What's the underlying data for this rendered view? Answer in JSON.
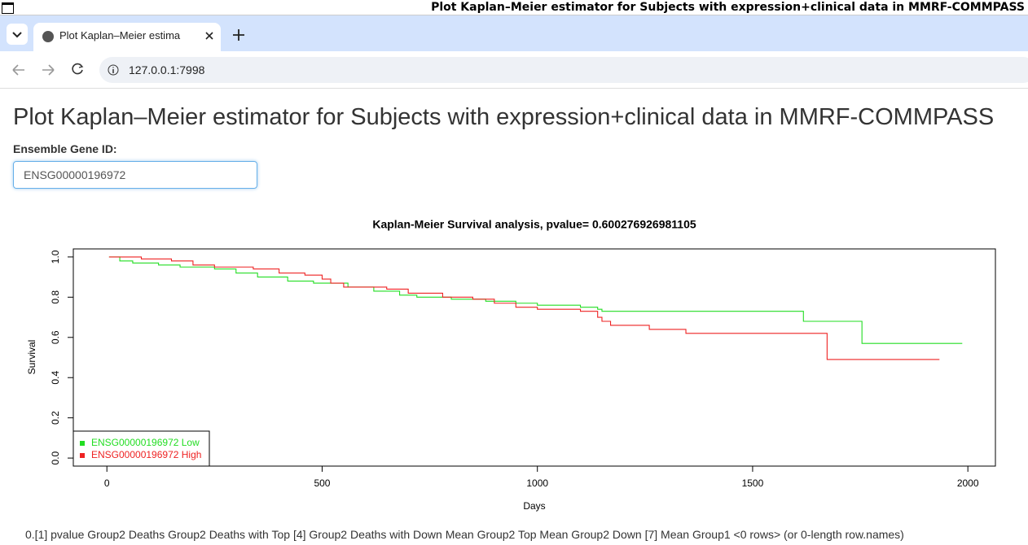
{
  "window": {
    "title": "Plot Kaplan–Meier estimator for Subjects with expression+clinical data in MMRF-COMMPASS"
  },
  "tab": {
    "title": "Plot Kaplan–Meier estima"
  },
  "address_bar": {
    "url": "127.0.0.1:7998"
  },
  "page": {
    "heading": "Plot Kaplan–Meier estimator for Subjects with expression+clinical data in MMRF-COMMPASS",
    "input_label": "Ensemble Gene ID:",
    "input_value": "ENSG00000196972",
    "footer_text": "0.[1] pvalue Group2 Deaths Group2 Deaths with Top [4] Group2 Deaths with Down Mean Group2 Top Mean Group2 Down [7] Mean Group1 <0 rows> (or 0-length row.names)"
  },
  "chart_data": {
    "type": "step",
    "title": "Kaplan-Meier Survival analysis, pvalue= 0.600276926981105",
    "xlabel": "Days",
    "ylabel": "Survival",
    "xlim": [
      -78,
      2064
    ],
    "ylim": [
      -0.04,
      1.04
    ],
    "xticks": [
      0,
      500,
      1000,
      1500,
      2000
    ],
    "yticks": [
      {
        "value": 0,
        "label": "0.0"
      },
      0.2,
      0.4,
      0.6,
      0.8,
      {
        "value": 1,
        "label": "1.0"
      }
    ],
    "legend": "bottom-left",
    "series": [
      {
        "name": "ENSG00000196972 Low",
        "color": "#22dd22",
        "x": [
          5,
          30,
          60,
          120,
          170,
          250,
          300,
          350,
          420,
          480,
          560,
          620,
          680,
          720,
          800,
          880,
          950,
          1000,
          1100,
          1140,
          1150,
          1618,
          1754,
          1987
        ],
        "values": [
          1.0,
          0.98,
          0.97,
          0.96,
          0.95,
          0.94,
          0.92,
          0.9,
          0.88,
          0.87,
          0.85,
          0.83,
          0.81,
          0.8,
          0.79,
          0.78,
          0.77,
          0.76,
          0.75,
          0.74,
          0.73,
          0.68,
          0.57,
          0.57
        ]
      },
      {
        "name": "ENSG00000196972 High",
        "color": "#ee2222",
        "x": [
          5,
          10,
          80,
          150,
          200,
          250,
          340,
          400,
          460,
          500,
          520,
          550,
          650,
          700,
          780,
          850,
          900,
          950,
          1000,
          1100,
          1140,
          1150,
          1170,
          1260,
          1345,
          1673,
          1934
        ],
        "values": [
          1.0,
          1.0,
          0.99,
          0.98,
          0.96,
          0.95,
          0.94,
          0.92,
          0.91,
          0.89,
          0.87,
          0.85,
          0.84,
          0.82,
          0.8,
          0.79,
          0.77,
          0.75,
          0.74,
          0.73,
          0.7,
          0.68,
          0.66,
          0.64,
          0.62,
          0.49,
          0.49
        ]
      }
    ]
  }
}
